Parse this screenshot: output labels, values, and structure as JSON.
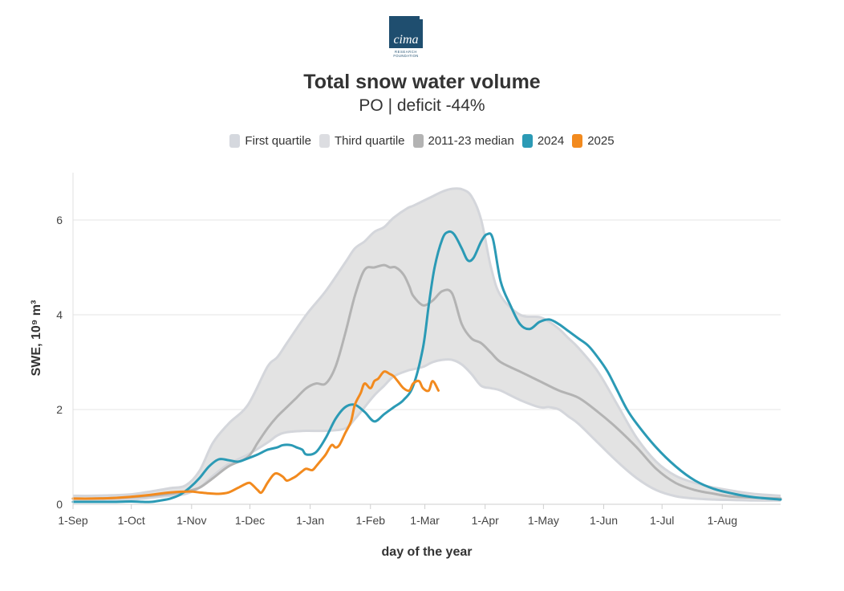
{
  "logo": {
    "text": "cima",
    "sub1": "RESEARCH",
    "sub2": "FOUNDATION",
    "color": "#1f4e6f"
  },
  "title": "Total snow water volume",
  "subtitle": "PO | deficit -44%",
  "legend": [
    {
      "label": "First quartile",
      "color": "#d5d8de"
    },
    {
      "label": "Third quartile",
      "color": "#dcdde1"
    },
    {
      "label": "2011-23 median",
      "color": "#b3b3b3"
    },
    {
      "label": "2024",
      "color": "#2b9ab5"
    },
    {
      "label": "2025",
      "color": "#f28a1e"
    }
  ],
  "chart_data": {
    "type": "line",
    "title": "Total snow water volume",
    "subtitle": "PO | deficit -44%",
    "xlabel": "day of the year",
    "ylabel": "SWE, 10⁹ m³",
    "x_unit": "days since 1-Sep",
    "xlim": [
      0,
      364
    ],
    "ylim": [
      0,
      7
    ],
    "yticks": [
      0,
      2,
      4,
      6
    ],
    "xticks": [
      {
        "label": "1-Sep",
        "day": 0
      },
      {
        "label": "1-Oct",
        "day": 30
      },
      {
        "label": "1-Nov",
        "day": 61
      },
      {
        "label": "1-Dec",
        "day": 91
      },
      {
        "label": "1-Jan",
        "day": 122
      },
      {
        "label": "1-Feb",
        "day": 153
      },
      {
        "label": "1-Mar",
        "day": 181
      },
      {
        "label": "1-Apr",
        "day": 212
      },
      {
        "label": "1-May",
        "day": 242
      },
      {
        "label": "1-Jun",
        "day": 273
      },
      {
        "label": "1-Jul",
        "day": 303
      },
      {
        "label": "1-Aug",
        "day": 334
      }
    ],
    "grid": true,
    "legend_position": "top-center",
    "band": {
      "lower_name": "First quartile",
      "upper_name": "Third quartile",
      "fill": "#e3e3e3",
      "edge": "#d4d6db",
      "x": [
        0,
        10,
        20,
        30,
        40,
        50,
        58,
        65,
        72,
        80,
        90,
        100,
        105,
        110,
        120,
        130,
        140,
        145,
        150,
        155,
        160,
        165,
        172,
        175,
        180,
        185,
        190,
        195,
        200,
        205,
        210,
        215,
        220,
        230,
        240,
        245,
        250,
        255,
        260,
        270,
        280,
        290,
        300,
        310,
        320,
        330,
        340,
        350,
        364
      ],
      "upper": [
        0.18,
        0.18,
        0.19,
        0.21,
        0.27,
        0.34,
        0.4,
        0.7,
        1.3,
        1.7,
        2.1,
        2.9,
        3.1,
        3.4,
        4.0,
        4.5,
        5.1,
        5.4,
        5.55,
        5.75,
        5.85,
        6.05,
        6.25,
        6.3,
        6.4,
        6.5,
        6.6,
        6.66,
        6.65,
        6.5,
        6.0,
        5.0,
        4.4,
        4.0,
        3.95,
        3.85,
        3.7,
        3.5,
        3.3,
        2.8,
        2.1,
        1.4,
        0.9,
        0.6,
        0.45,
        0.35,
        0.28,
        0.22,
        0.18
      ],
      "lower": [
        0.08,
        0.08,
        0.09,
        0.1,
        0.14,
        0.18,
        0.22,
        0.35,
        0.6,
        0.85,
        1.05,
        1.3,
        1.45,
        1.52,
        1.55,
        1.55,
        1.6,
        1.8,
        2.05,
        2.3,
        2.5,
        2.7,
        2.82,
        2.85,
        2.9,
        3.0,
        3.05,
        3.05,
        2.95,
        2.75,
        2.5,
        2.45,
        2.4,
        2.2,
        2.05,
        2.05,
        2.0,
        1.85,
        1.7,
        1.3,
        0.9,
        0.55,
        0.3,
        0.17,
        0.12,
        0.1,
        0.09,
        0.08,
        0.08
      ]
    },
    "series": [
      {
        "name": "2011-23 median",
        "color": "#b3b3b3",
        "x": [
          0,
          10,
          20,
          30,
          40,
          50,
          58,
          65,
          72,
          80,
          90,
          95,
          100,
          105,
          110,
          115,
          120,
          125,
          130,
          135,
          140,
          145,
          150,
          155,
          160,
          163,
          166,
          170,
          173,
          175,
          180,
          185,
          190,
          195,
          200,
          205,
          210,
          215,
          220,
          230,
          240,
          250,
          260,
          270,
          280,
          290,
          300,
          310,
          320,
          330,
          340,
          364
        ],
        "values": [
          0.12,
          0.12,
          0.13,
          0.15,
          0.18,
          0.22,
          0.27,
          0.35,
          0.55,
          0.8,
          1.0,
          1.3,
          1.6,
          1.85,
          2.05,
          2.25,
          2.45,
          2.55,
          2.55,
          2.9,
          3.6,
          4.4,
          4.95,
          5.0,
          5.05,
          5.0,
          5.0,
          4.85,
          4.6,
          4.4,
          4.2,
          4.3,
          4.5,
          4.45,
          3.8,
          3.5,
          3.4,
          3.2,
          3.0,
          2.8,
          2.6,
          2.4,
          2.25,
          1.95,
          1.6,
          1.2,
          0.75,
          0.45,
          0.3,
          0.22,
          0.16,
          0.12
        ]
      },
      {
        "name": "2024",
        "color": "#2b9ab5",
        "x": [
          0,
          10,
          20,
          30,
          35,
          40,
          45,
          50,
          55,
          60,
          65,
          70,
          75,
          80,
          85,
          90,
          95,
          100,
          105,
          108,
          112,
          115,
          118,
          120,
          125,
          130,
          135,
          140,
          145,
          150,
          155,
          160,
          165,
          170,
          175,
          180,
          183,
          186,
          190,
          193,
          196,
          200,
          203,
          206,
          210,
          213,
          216,
          220,
          225,
          230,
          235,
          240,
          245,
          250,
          255,
          260,
          265,
          270,
          275,
          280,
          285,
          290,
          300,
          310,
          320,
          330,
          340,
          350,
          364
        ],
        "values": [
          0.05,
          0.05,
          0.05,
          0.06,
          0.05,
          0.05,
          0.08,
          0.12,
          0.2,
          0.35,
          0.55,
          0.8,
          0.95,
          0.93,
          0.9,
          0.97,
          1.05,
          1.15,
          1.2,
          1.25,
          1.25,
          1.2,
          1.15,
          1.05,
          1.1,
          1.4,
          1.8,
          2.05,
          2.1,
          1.95,
          1.75,
          1.9,
          2.05,
          2.2,
          2.5,
          3.3,
          4.2,
          5.0,
          5.6,
          5.75,
          5.7,
          5.4,
          5.15,
          5.2,
          5.55,
          5.7,
          5.6,
          4.7,
          4.2,
          3.8,
          3.7,
          3.85,
          3.9,
          3.8,
          3.65,
          3.5,
          3.35,
          3.1,
          2.8,
          2.4,
          2.0,
          1.7,
          1.2,
          0.8,
          0.5,
          0.32,
          0.22,
          0.15,
          0.1
        ]
      },
      {
        "name": "2025",
        "color": "#f28a1e",
        "x": [
          0,
          10,
          20,
          30,
          40,
          50,
          60,
          65,
          70,
          75,
          80,
          85,
          90,
          92,
          95,
          97,
          100,
          103,
          105,
          108,
          110,
          113,
          115,
          118,
          120,
          123,
          125,
          128,
          130,
          133,
          135,
          137,
          140,
          143,
          145,
          148,
          150,
          153,
          155,
          157,
          160,
          163,
          165,
          167,
          170,
          173,
          175,
          178,
          180,
          183,
          185,
          188
        ],
        "values": [
          0.12,
          0.12,
          0.13,
          0.16,
          0.2,
          0.25,
          0.27,
          0.25,
          0.23,
          0.22,
          0.25,
          0.35,
          0.45,
          0.42,
          0.3,
          0.25,
          0.45,
          0.62,
          0.65,
          0.58,
          0.5,
          0.55,
          0.6,
          0.7,
          0.75,
          0.72,
          0.8,
          0.95,
          1.05,
          1.25,
          1.2,
          1.25,
          1.5,
          1.75,
          2.1,
          2.35,
          2.55,
          2.45,
          2.6,
          2.65,
          2.8,
          2.75,
          2.7,
          2.6,
          2.45,
          2.4,
          2.55,
          2.6,
          2.45,
          2.4,
          2.6,
          2.4
        ]
      }
    ]
  }
}
